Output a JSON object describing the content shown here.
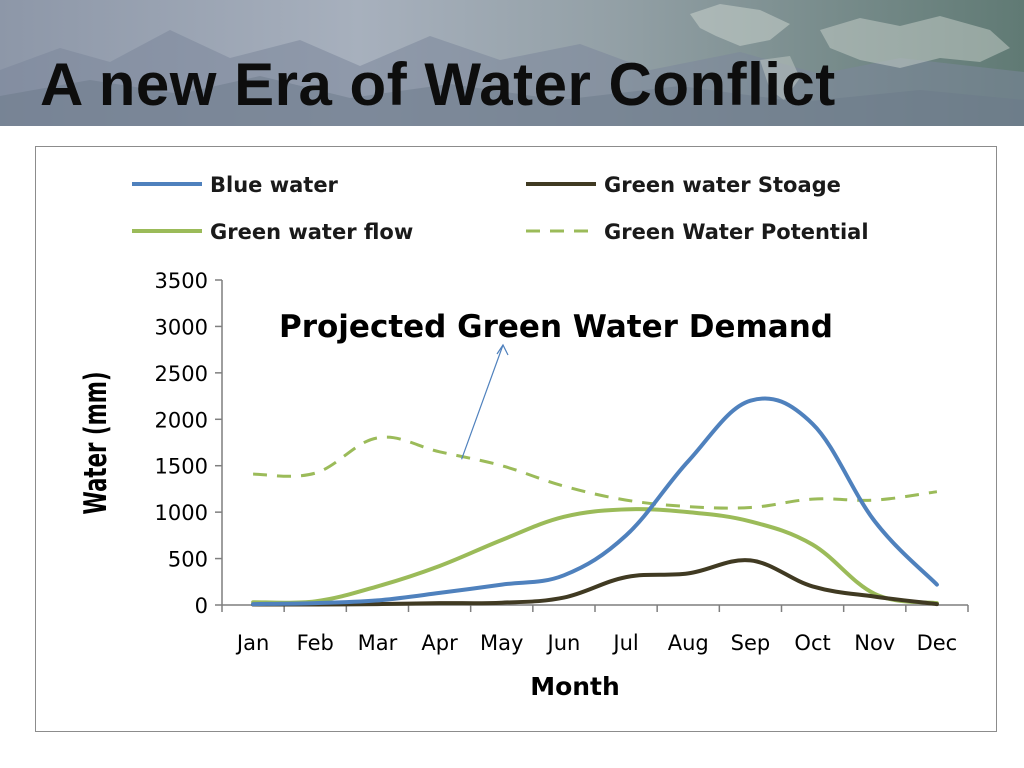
{
  "slide": {
    "title": "A new Era of Water Conflict"
  },
  "colors": {
    "blue_water": "#4f81bd",
    "green_storage": "#403a22",
    "green_flow": "#9bbb59",
    "green_potential": "#9bbb59",
    "annotation_arrow": "#4f81bd",
    "axis": "#7f7f7f"
  },
  "chart_data": {
    "type": "line",
    "title": "",
    "xlabel": "Month",
    "ylabel": "Water (mm)",
    "ylim": [
      0,
      3500
    ],
    "yticks": [
      0,
      500,
      1000,
      1500,
      2000,
      2500,
      3000,
      3500
    ],
    "grid": false,
    "legend_position": "top",
    "categories": [
      "Jan",
      "Feb",
      "Mar",
      "Apr",
      "May",
      "Jun",
      "Jul",
      "Aug",
      "Sep",
      "Oct",
      "Nov",
      "Dec"
    ],
    "series": [
      {
        "name": "Blue water",
        "style": "solid",
        "color": "#4f81bd",
        "values": [
          10,
          20,
          50,
          130,
          220,
          320,
          750,
          1550,
          2200,
          1950,
          900,
          220
        ]
      },
      {
        "name": "Green water Stoage",
        "style": "solid",
        "color": "#403a22",
        "values": [
          5,
          5,
          10,
          20,
          25,
          80,
          300,
          340,
          480,
          200,
          90,
          10
        ]
      },
      {
        "name": "Green water flow",
        "style": "solid",
        "color": "#9bbb59",
        "values": [
          30,
          40,
          200,
          420,
          700,
          950,
          1030,
          1000,
          900,
          650,
          120,
          20
        ]
      },
      {
        "name": "Green Water Potential",
        "style": "dashed",
        "color": "#9bbb59",
        "values": [
          1410,
          1420,
          1800,
          1650,
          1500,
          1280,
          1130,
          1060,
          1050,
          1140,
          1130,
          1220
        ]
      }
    ],
    "annotations": [
      {
        "text": "Projected Green Water Demand",
        "points_to": {
          "category": "Apr",
          "value": 1590
        }
      }
    ]
  }
}
